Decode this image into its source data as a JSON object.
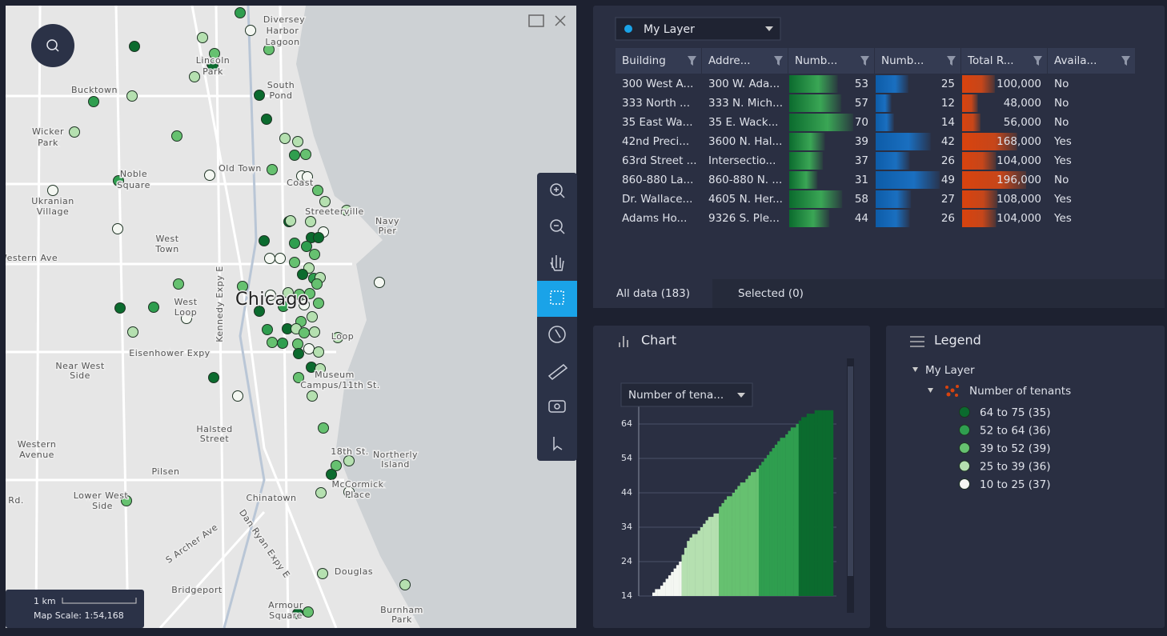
{
  "map": {
    "labels": [
      "Diversey",
      "Harbor",
      "Lagoon",
      "Lincoln",
      "Park",
      "Bucktown",
      "South",
      "Pond",
      "Wicker",
      "Park",
      "Old Town",
      "Noble",
      "Square",
      "Ukranian",
      "Village",
      "Coast",
      "Streeterville",
      "Navy",
      "Pier",
      "West",
      "Town",
      "Western Ave",
      "West",
      "Loop",
      "Chicago",
      "Eisenhower Expy",
      "Near West",
      "Side",
      "Museum",
      "Campus/11th St.",
      "Halsted",
      "Street",
      "Western",
      "Avenue",
      "18th St.",
      "Northerly",
      "Island",
      "Pilsen",
      "McCormick",
      "Place",
      "Lower West",
      "Side",
      "Chinatown",
      "Rd.",
      "Douglas",
      "Bridgeport",
      "Armour",
      "Square",
      "Burnham",
      "Park",
      "Kennedy Expy E",
      "Dan Ryan Expy E",
      "S Archer Ave",
      "Loop"
    ],
    "scale": "1 km",
    "map_scale": "Map Scale: 1:54,168"
  },
  "table": {
    "layer": "My Layer",
    "columns": [
      "Building",
      "Addre...",
      "Numb...",
      "Numb...",
      "Total R...",
      "Availa..."
    ],
    "rows": [
      [
        "300 West A...",
        "300 W. Ada...",
        53,
        25,
        "100,000",
        "No"
      ],
      [
        "333 North ...",
        "333 N. Mich...",
        57,
        12,
        "48,000",
        "No"
      ],
      [
        "35 East Wa...",
        "35 E. Wack...",
        70,
        14,
        "56,000",
        "No"
      ],
      [
        "42nd Preci...",
        "3600 N. Hal...",
        39,
        42,
        "168,000",
        "Yes"
      ],
      [
        "63rd Street ...",
        "Intersectio...",
        37,
        26,
        "104,000",
        "Yes"
      ],
      [
        "860-880 La...",
        "860-880 N. ...",
        31,
        49,
        "196,000",
        "No"
      ],
      [
        "Dr. Wallace...",
        "4605 N. Her...",
        58,
        27,
        "108,000",
        "Yes"
      ],
      [
        "Adams Ho...",
        "9326 S. Ple...",
        44,
        26,
        "104,000",
        "Yes"
      ]
    ]
  },
  "tabs": [
    "All data (183)",
    "Selected (0)"
  ],
  "chart_data": {
    "type": "bar",
    "title": "Chart",
    "field": "Number of tena...",
    "ylim": [
      14,
      69
    ],
    "yticks": [
      14,
      24,
      34,
      44,
      54,
      64
    ],
    "grid": true,
    "series": [
      {
        "color": "#f4f7f2",
        "values": [
          15,
          16,
          16,
          17,
          18,
          19,
          20,
          21,
          22,
          23,
          24
        ]
      },
      {
        "color": "#b5e0b0",
        "values": [
          26,
          28,
          30,
          31,
          32,
          32,
          33,
          34,
          35,
          36,
          37,
          37,
          38,
          38
        ]
      },
      {
        "color": "#66c170",
        "values": [
          40,
          41,
          42,
          43,
          43,
          44,
          45,
          46,
          47,
          47,
          48,
          49,
          50,
          50,
          51
        ]
      },
      {
        "color": "#2f9e4f",
        "values": [
          52,
          53,
          54,
          55,
          56,
          57,
          58,
          59,
          60,
          60,
          61,
          62,
          63,
          63,
          64
        ]
      },
      {
        "color": "#0b6b2e",
        "values": [
          65,
          66,
          66,
          67,
          67,
          67,
          68,
          68,
          68,
          68,
          68,
          68,
          68
        ]
      }
    ]
  },
  "legend": {
    "title": "Legend",
    "layer": "My Layer",
    "field": "Number of tenants",
    "classes": [
      {
        "label": "64 to 75 (35)",
        "color": "#0b6b2e"
      },
      {
        "label": "52 to 64 (36)",
        "color": "#2f9e4f"
      },
      {
        "label": "39 to 52 (39)",
        "color": "#66c170"
      },
      {
        "label": "25 to 39 (36)",
        "color": "#b5e0b0"
      },
      {
        "label": "10 to 25 (37)",
        "color": "#f4f7f2"
      }
    ]
  }
}
